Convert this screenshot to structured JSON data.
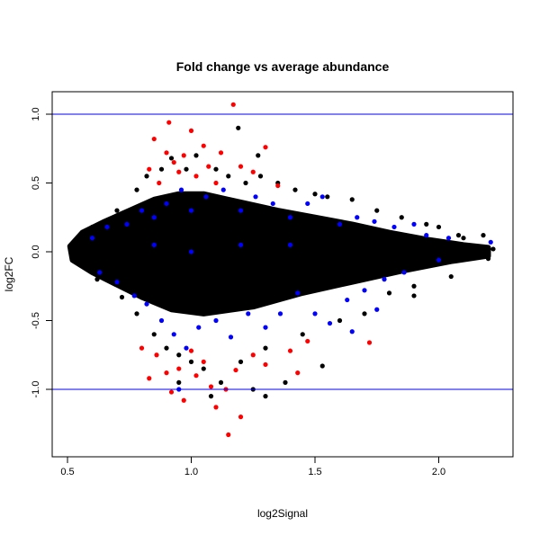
{
  "chart_data": {
    "type": "scatter",
    "title": "Fold change vs average abundance",
    "xlabel": "log2Signal",
    "ylabel": "log2FC",
    "xlim": [
      0.44,
      2.3
    ],
    "ylim": [
      -1.5,
      1.16
    ],
    "xticks": [
      {
        "v": 0.5,
        "label": "0.5"
      },
      {
        "v": 1.0,
        "label": "1.0"
      },
      {
        "v": 1.5,
        "label": "1.5"
      },
      {
        "v": 2.0,
        "label": "2.0"
      }
    ],
    "yticks": [
      {
        "v": -1.0,
        "label": "-1.0"
      },
      {
        "v": -0.5,
        "label": "-0.5"
      },
      {
        "v": 0.0,
        "label": "0.0"
      },
      {
        "v": 0.5,
        "label": "0.5"
      },
      {
        "v": 1.0,
        "label": "1.0"
      }
    ],
    "hlines": [
      1.0,
      -1.0
    ],
    "colors": {
      "all": "#000000",
      "highlight": "#0000ff",
      "significant": "#ff0000",
      "hline": "#0000ff"
    },
    "dense_core": [
      [
        0.51,
        0.04
      ],
      [
        0.56,
        0.14
      ],
      [
        0.65,
        0.22
      ],
      [
        0.75,
        0.3
      ],
      [
        0.85,
        0.38
      ],
      [
        0.95,
        0.42
      ],
      [
        1.05,
        0.42
      ],
      [
        1.2,
        0.36
      ],
      [
        1.35,
        0.3
      ],
      [
        1.5,
        0.25
      ],
      [
        1.65,
        0.2
      ],
      [
        1.8,
        0.14
      ],
      [
        1.95,
        0.09
      ],
      [
        2.1,
        0.05
      ],
      [
        2.2,
        0.03
      ],
      [
        2.2,
        -0.03
      ],
      [
        2.05,
        -0.07
      ],
      [
        1.85,
        -0.14
      ],
      [
        1.65,
        -0.22
      ],
      [
        1.45,
        -0.3
      ],
      [
        1.25,
        -0.4
      ],
      [
        1.05,
        -0.45
      ],
      [
        0.92,
        -0.42
      ],
      [
        0.8,
        -0.33
      ],
      [
        0.7,
        -0.24
      ],
      [
        0.6,
        -0.15
      ],
      [
        0.52,
        -0.06
      ]
    ],
    "series": [
      {
        "name": "all",
        "color": "#000000",
        "points": [
          [
            0.53,
            0.08
          ],
          [
            0.52,
            -0.05
          ],
          [
            0.6,
            0.18
          ],
          [
            0.62,
            -0.2
          ],
          [
            0.7,
            0.3
          ],
          [
            0.72,
            -0.33
          ],
          [
            0.78,
            0.45
          ],
          [
            0.78,
            -0.45
          ],
          [
            0.82,
            0.55
          ],
          [
            0.85,
            -0.6
          ],
          [
            0.88,
            0.6
          ],
          [
            0.9,
            -0.7
          ],
          [
            0.92,
            0.68
          ],
          [
            0.95,
            -0.75
          ],
          [
            0.98,
            0.6
          ],
          [
            1.0,
            -0.8
          ],
          [
            1.02,
            0.7
          ],
          [
            1.05,
            -0.85
          ],
          [
            1.1,
            0.6
          ],
          [
            1.12,
            -0.95
          ],
          [
            1.15,
            0.55
          ],
          [
            1.2,
            -0.8
          ],
          [
            1.22,
            0.5
          ],
          [
            1.25,
            -1.0
          ],
          [
            1.28,
            0.55
          ],
          [
            1.3,
            -0.7
          ],
          [
            1.35,
            0.5
          ],
          [
            1.38,
            -0.95
          ],
          [
            1.42,
            0.45
          ],
          [
            1.45,
            -0.6
          ],
          [
            1.5,
            0.42
          ],
          [
            1.53,
            -0.83
          ],
          [
            1.55,
            0.4
          ],
          [
            1.6,
            -0.5
          ],
          [
            1.65,
            0.38
          ],
          [
            1.7,
            -0.45
          ],
          [
            1.75,
            0.3
          ],
          [
            1.8,
            -0.3
          ],
          [
            1.85,
            0.25
          ],
          [
            1.9,
            -0.25
          ],
          [
            1.95,
            0.2
          ],
          [
            2.0,
            0.18
          ],
          [
            2.05,
            -0.18
          ],
          [
            2.1,
            0.1
          ],
          [
            2.18,
            0.12
          ],
          [
            2.2,
            -0.05
          ],
          [
            2.22,
            0.02
          ],
          [
            1.19,
            0.9
          ],
          [
            1.27,
            0.7
          ],
          [
            0.95,
            -0.95
          ],
          [
            1.08,
            -1.05
          ],
          [
            1.3,
            -1.05
          ],
          [
            0.68,
            -0.2
          ],
          [
            1.9,
            -0.32
          ],
          [
            2.08,
            0.12
          ]
        ]
      },
      {
        "name": "highlight",
        "color": "#0000ff",
        "points": [
          [
            0.6,
            0.1
          ],
          [
            0.63,
            -0.15
          ],
          [
            0.66,
            0.18
          ],
          [
            0.7,
            -0.22
          ],
          [
            0.74,
            0.2
          ],
          [
            0.77,
            -0.32
          ],
          [
            0.8,
            0.3
          ],
          [
            0.82,
            -0.38
          ],
          [
            0.85,
            0.25
          ],
          [
            0.88,
            -0.5
          ],
          [
            0.9,
            0.35
          ],
          [
            0.93,
            -0.6
          ],
          [
            0.96,
            0.45
          ],
          [
            0.98,
            -0.7
          ],
          [
            1.0,
            0.3
          ],
          [
            1.03,
            -0.55
          ],
          [
            1.06,
            0.4
          ],
          [
            1.1,
            -0.5
          ],
          [
            1.13,
            0.45
          ],
          [
            1.16,
            -0.62
          ],
          [
            1.2,
            0.3
          ],
          [
            1.23,
            -0.45
          ],
          [
            1.26,
            0.4
          ],
          [
            1.3,
            -0.55
          ],
          [
            1.33,
            0.35
          ],
          [
            1.36,
            -0.45
          ],
          [
            1.4,
            0.25
          ],
          [
            1.43,
            -0.3
          ],
          [
            1.47,
            0.35
          ],
          [
            1.5,
            -0.45
          ],
          [
            1.53,
            0.4
          ],
          [
            1.56,
            -0.52
          ],
          [
            1.6,
            0.2
          ],
          [
            1.63,
            -0.35
          ],
          [
            1.67,
            0.25
          ],
          [
            1.7,
            -0.28
          ],
          [
            1.74,
            0.22
          ],
          [
            1.78,
            -0.2
          ],
          [
            1.82,
            0.18
          ],
          [
            1.86,
            -0.15
          ],
          [
            1.9,
            0.2
          ],
          [
            1.95,
            0.12
          ],
          [
            2.0,
            -0.06
          ],
          [
            2.04,
            0.1
          ],
          [
            2.21,
            0.07
          ],
          [
            0.95,
            -1.0
          ],
          [
            1.0,
            0.0
          ],
          [
            1.2,
            0.05
          ],
          [
            1.4,
            0.05
          ],
          [
            0.85,
            0.05
          ],
          [
            1.75,
            -0.42
          ],
          [
            1.65,
            -0.58
          ]
        ]
      },
      {
        "name": "significant",
        "color": "#ff0000",
        "points": [
          [
            0.83,
            0.6
          ],
          [
            0.85,
            0.82
          ],
          [
            0.87,
            0.5
          ],
          [
            0.9,
            0.72
          ],
          [
            0.91,
            0.94
          ],
          [
            0.93,
            0.65
          ],
          [
            0.95,
            0.58
          ],
          [
            0.97,
            0.7
          ],
          [
            1.0,
            0.88
          ],
          [
            1.02,
            0.55
          ],
          [
            1.05,
            0.77
          ],
          [
            1.07,
            0.62
          ],
          [
            1.1,
            0.5
          ],
          [
            1.12,
            0.72
          ],
          [
            1.17,
            1.07
          ],
          [
            1.2,
            0.62
          ],
          [
            1.25,
            0.58
          ],
          [
            1.3,
            0.76
          ],
          [
            1.35,
            0.48
          ],
          [
            0.8,
            -0.7
          ],
          [
            0.83,
            -0.92
          ],
          [
            0.86,
            -0.75
          ],
          [
            0.9,
            -0.88
          ],
          [
            0.92,
            -1.02
          ],
          [
            0.95,
            -0.85
          ],
          [
            0.97,
            -1.08
          ],
          [
            1.0,
            -0.72
          ],
          [
            1.02,
            -0.9
          ],
          [
            1.05,
            -0.8
          ],
          [
            1.08,
            -0.98
          ],
          [
            1.1,
            -1.13
          ],
          [
            1.14,
            -1.0
          ],
          [
            1.15,
            -1.33
          ],
          [
            1.18,
            -0.86
          ],
          [
            1.2,
            -1.2
          ],
          [
            1.25,
            -0.75
          ],
          [
            1.3,
            -0.82
          ],
          [
            1.4,
            -0.72
          ],
          [
            1.43,
            -0.88
          ],
          [
            1.47,
            -0.65
          ],
          [
            1.72,
            -0.66
          ]
        ]
      }
    ]
  }
}
